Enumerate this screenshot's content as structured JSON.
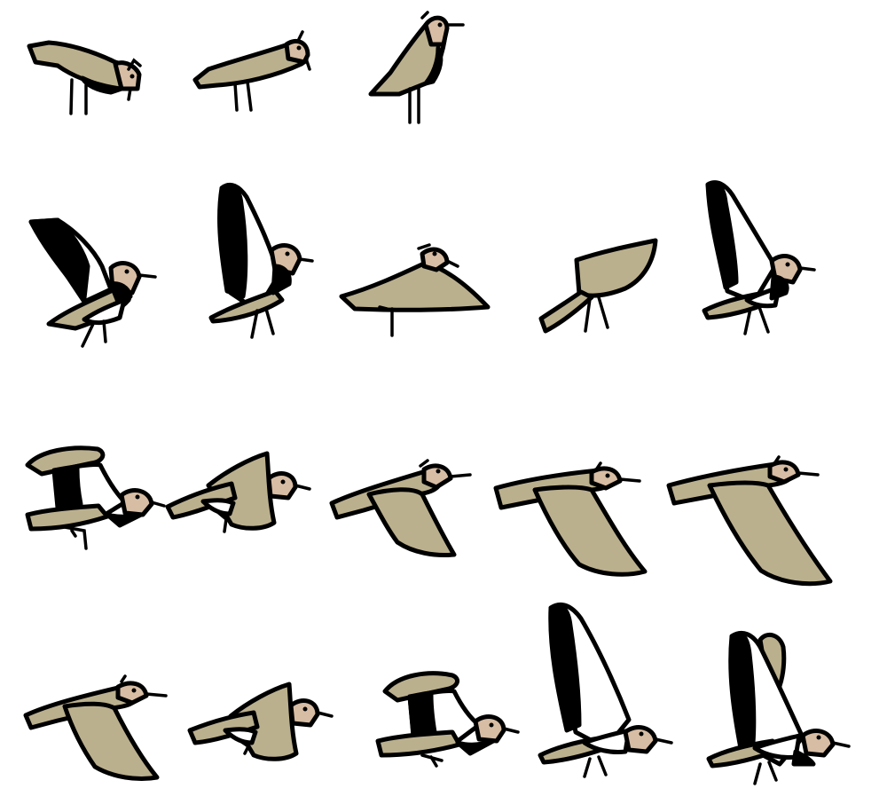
{
  "sheet": {
    "subject": "lapwing",
    "colors": {
      "body": "#bbb08e",
      "face": "#d7bda4",
      "belly": "#ffffff",
      "dark": "#000000",
      "background": "#ffffff"
    },
    "rows": [
      {
        "row": "standing",
        "frames": [
          {
            "pose": "ground-peck"
          },
          {
            "pose": "ground-peck-low"
          },
          {
            "pose": "standing-upright"
          }
        ]
      },
      {
        "row": "takeoff",
        "frames": [
          {
            "pose": "wings-up-back"
          },
          {
            "pose": "wings-up-vertical"
          },
          {
            "pose": "wings-spread-flat"
          },
          {
            "pose": "wing-raised-top"
          },
          {
            "pose": "wings-up-underside"
          }
        ]
      },
      {
        "row": "flight-a",
        "frames": [
          {
            "pose": "wing-fold-up"
          },
          {
            "pose": "wing-mid-up"
          },
          {
            "pose": "wing-down-small"
          },
          {
            "pose": "wing-down-large"
          },
          {
            "pose": "wing-down-full"
          }
        ]
      },
      {
        "row": "flight-b",
        "frames": [
          {
            "pose": "wing-down-mid"
          },
          {
            "pose": "wing-mid-up"
          },
          {
            "pose": "wing-fold-up"
          },
          {
            "pose": "wings-up-underside"
          },
          {
            "pose": "wings-up-underside-alt"
          }
        ]
      }
    ]
  }
}
